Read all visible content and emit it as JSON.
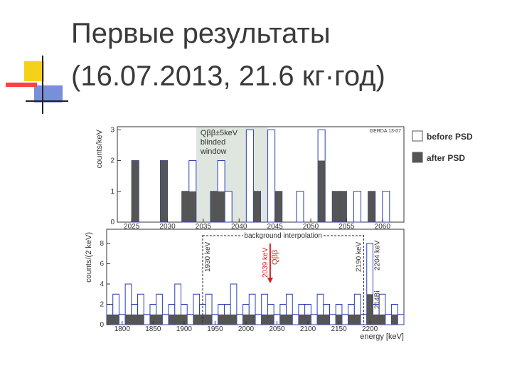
{
  "slide": {
    "title_lines": [
      "Первые результаты",
      "(16.07.2013, 21.6 кг·год)"
    ]
  },
  "chart_data": [
    {
      "type": "histogram",
      "ylabel": "counts/keV",
      "tag": "GERDA 13-07",
      "blinded_window": {
        "range": [
          2034,
          2044
        ],
        "label_lines": [
          "Qββ±5keV",
          "blinded",
          "window"
        ]
      },
      "bins": [
        2023,
        2024,
        2025,
        2026,
        2027,
        2028,
        2029,
        2030,
        2031,
        2032,
        2033,
        2034,
        2035,
        2036,
        2037,
        2038,
        2039,
        2040,
        2041,
        2042,
        2043,
        2044,
        2045,
        2046,
        2047,
        2048,
        2049,
        2050,
        2051,
        2052,
        2053,
        2054,
        2055,
        2056,
        2057,
        2058,
        2059,
        2060,
        2061,
        2062,
        2063
      ],
      "series": [
        {
          "name": "before PSD",
          "color": "#2a3fb5",
          "style": "outline",
          "values": [
            0,
            0,
            2,
            0,
            0,
            0,
            2,
            0,
            0,
            1,
            2,
            0,
            0,
            1,
            2,
            1,
            0,
            0,
            3,
            1,
            0,
            3,
            1,
            0,
            0,
            1,
            0,
            0,
            3,
            0,
            1,
            1,
            0,
            1,
            0,
            1,
            0,
            1,
            0,
            0
          ]
        },
        {
          "name": "after PSD",
          "color": "#555555",
          "style": "filled",
          "values": [
            0,
            0,
            2,
            0,
            0,
            0,
            2,
            0,
            0,
            1,
            1,
            0,
            0,
            1,
            1,
            0,
            0,
            0,
            0,
            1,
            0,
            0,
            1,
            0,
            0,
            0,
            0,
            0,
            2,
            0,
            1,
            1,
            0,
            0,
            0,
            1,
            0,
            0,
            0,
            0
          ]
        }
      ],
      "legend": "right",
      "xlim": [
        2023,
        2063
      ],
      "xticks": [
        2025,
        2030,
        2035,
        2040,
        2045,
        2050,
        2055,
        2060
      ],
      "ylim": [
        0,
        3.1
      ],
      "yticks": [
        0,
        1,
        2,
        3
      ]
    },
    {
      "type": "histogram",
      "ylabel": "counts/(2 keV)",
      "xlabel": "energy  [keV]",
      "interpolation_label": "background interpolation",
      "lines": [
        {
          "x": 1930,
          "label": "1930 keV"
        },
        {
          "x": 2190,
          "label": "2190 keV"
        }
      ],
      "arrow": {
        "x": 2039,
        "label": "2039 keV",
        "name": "Qββ"
      },
      "peak": {
        "x": 2204,
        "label": "2204 keV",
        "isotope": "214Bi"
      },
      "bins": [
        1775,
        1785,
        1795,
        1805,
        1815,
        1825,
        1835,
        1845,
        1855,
        1865,
        1875,
        1885,
        1895,
        1905,
        1915,
        1925,
        1935,
        1945,
        1955,
        1965,
        1975,
        1985,
        1995,
        2005,
        2015,
        2025,
        2035,
        2045,
        2055,
        2065,
        2075,
        2085,
        2095,
        2105,
        2115,
        2125,
        2135,
        2145,
        2155,
        2165,
        2175,
        2185,
        2195,
        2205,
        2215,
        2225,
        2235,
        2245,
        2255
      ],
      "series": [
        {
          "color": "#2a3fb5",
          "style": "outline",
          "values": [
            2,
            3,
            1,
            4,
            2,
            3,
            1,
            2,
            3,
            1,
            2,
            4,
            2,
            1,
            3,
            2,
            3,
            1,
            2,
            2,
            4,
            1,
            2,
            3,
            1,
            3,
            2,
            1,
            2,
            3,
            1,
            2,
            2,
            1,
            3,
            2,
            1,
            2,
            1,
            2,
            3,
            1,
            8,
            2,
            3,
            1,
            2,
            1
          ]
        },
        {
          "color": "#555555",
          "style": "filled",
          "values": [
            1,
            1,
            0,
            1,
            1,
            1,
            0,
            1,
            1,
            0,
            1,
            1,
            1,
            0,
            1,
            1,
            1,
            0,
            1,
            1,
            1,
            0,
            1,
            1,
            0,
            1,
            1,
            0,
            1,
            1,
            0,
            1,
            1,
            0,
            1,
            1,
            0,
            1,
            0,
            1,
            1,
            0,
            3,
            1,
            1,
            0,
            1,
            0
          ]
        }
      ],
      "xlim": [
        1775,
        2255
      ],
      "xticks": [
        1800,
        1850,
        1900,
        1950,
        2000,
        2050,
        2100,
        2150,
        2200
      ],
      "ylim": [
        0,
        9.4
      ],
      "yticks": [
        0,
        2,
        4,
        6,
        8
      ]
    }
  ]
}
